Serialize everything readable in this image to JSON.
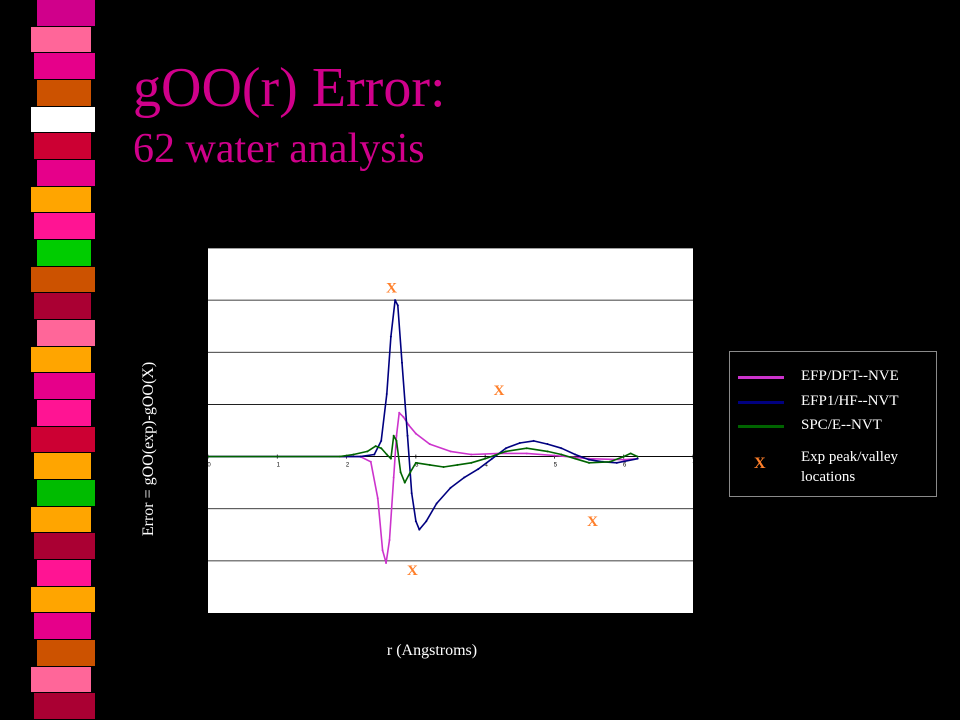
{
  "slide": {
    "title_line1": "gOO(r) Error:",
    "title_line2": "62 water analysis",
    "title_color": "#d0008b",
    "stripe_colors": [
      "#d0008b",
      "#ff6699",
      "#e6008a",
      "#cc5200",
      "#ffffff",
      "#cc0033",
      "#e6008a",
      "#ffa500",
      "#ff1493",
      "#00cc00",
      "#cc5200",
      "#aa0033",
      "#ff6699",
      "#ffa500",
      "#e6008a",
      "#ff1493",
      "#cc0033",
      "#ffa500",
      "#00bb00",
      "#ffa500",
      "#aa0033",
      "#ff1493",
      "#ffa500",
      "#e6008a",
      "#cc5200",
      "#ff6699",
      "#aa0033"
    ]
  },
  "chart_data": {
    "type": "line",
    "xlabel": "r (Angstroms)",
    "ylabel": "Error =   gOO(exp)-gOO(X)",
    "xlim": [
      0,
      7
    ],
    "ylim": [
      -1.5,
      2
    ],
    "xticks": [
      "0",
      "1",
      "2",
      "3",
      "4",
      "5",
      "6",
      "7"
    ],
    "yticks": [
      "-1.5",
      "-1",
      "-0.5",
      "0",
      "0.5",
      "1",
      "1.5",
      "2"
    ],
    "grid": "horizontal",
    "plot_background": "#ffffff",
    "series": [
      {
        "name": "EFP/DFT--NVE",
        "color": "#cc33cc",
        "points": [
          [
            0,
            0
          ],
          [
            2.0,
            0
          ],
          [
            2.2,
            0
          ],
          [
            2.35,
            -0.05
          ],
          [
            2.45,
            -0.4
          ],
          [
            2.52,
            -0.9
          ],
          [
            2.57,
            -1.02
          ],
          [
            2.62,
            -0.8
          ],
          [
            2.68,
            -0.2
          ],
          [
            2.72,
            0.2
          ],
          [
            2.76,
            0.42
          ],
          [
            2.82,
            0.38
          ],
          [
            2.9,
            0.3
          ],
          [
            3.0,
            0.22
          ],
          [
            3.2,
            0.12
          ],
          [
            3.5,
            0.05
          ],
          [
            3.8,
            0.02
          ],
          [
            4.2,
            0.03
          ],
          [
            4.6,
            0.03
          ],
          [
            5.0,
            0.01
          ],
          [
            5.5,
            -0.02
          ],
          [
            6.0,
            -0.03
          ],
          [
            6.2,
            -0.02
          ]
        ]
      },
      {
        "name": "EFP1/HF--NVT",
        "color": "#000080",
        "points": [
          [
            0,
            0
          ],
          [
            2.2,
            0
          ],
          [
            2.4,
            0.02
          ],
          [
            2.5,
            0.15
          ],
          [
            2.58,
            0.6
          ],
          [
            2.64,
            1.15
          ],
          [
            2.7,
            1.5
          ],
          [
            2.74,
            1.45
          ],
          [
            2.8,
            0.9
          ],
          [
            2.88,
            0.2
          ],
          [
            2.94,
            -0.35
          ],
          [
            3.0,
            -0.62
          ],
          [
            3.05,
            -0.7
          ],
          [
            3.15,
            -0.62
          ],
          [
            3.3,
            -0.45
          ],
          [
            3.5,
            -0.3
          ],
          [
            3.7,
            -0.2
          ],
          [
            3.9,
            -0.12
          ],
          [
            4.1,
            -0.02
          ],
          [
            4.3,
            0.08
          ],
          [
            4.5,
            0.13
          ],
          [
            4.7,
            0.15
          ],
          [
            4.9,
            0.12
          ],
          [
            5.1,
            0.08
          ],
          [
            5.3,
            0.02
          ],
          [
            5.5,
            -0.03
          ],
          [
            5.7,
            -0.05
          ],
          [
            5.9,
            -0.06
          ],
          [
            6.2,
            -0.02
          ]
        ]
      },
      {
        "name": "SPC/E--NVT",
        "color": "#006400",
        "points": [
          [
            0,
            0
          ],
          [
            1.9,
            0
          ],
          [
            2.1,
            0.02
          ],
          [
            2.3,
            0.05
          ],
          [
            2.42,
            0.1
          ],
          [
            2.5,
            0.08
          ],
          [
            2.58,
            0.02
          ],
          [
            2.64,
            -0.02
          ],
          [
            2.68,
            0.2
          ],
          [
            2.72,
            0.15
          ],
          [
            2.78,
            -0.15
          ],
          [
            2.84,
            -0.25
          ],
          [
            2.92,
            -0.15
          ],
          [
            3.0,
            -0.06
          ],
          [
            3.2,
            -0.08
          ],
          [
            3.4,
            -0.1
          ],
          [
            3.6,
            -0.08
          ],
          [
            3.8,
            -0.06
          ],
          [
            4.0,
            -0.02
          ],
          [
            4.3,
            0.05
          ],
          [
            4.6,
            0.08
          ],
          [
            4.9,
            0.05
          ],
          [
            5.1,
            0.02
          ],
          [
            5.3,
            -0.02
          ],
          [
            5.5,
            -0.06
          ],
          [
            5.8,
            -0.05
          ],
          [
            6.0,
            0.0
          ],
          [
            6.1,
            0.03
          ],
          [
            6.2,
            0.0
          ]
        ]
      }
    ],
    "exp_markers": {
      "name": "Exp peak/valley locations",
      "symbol": "X",
      "color": "#ff7f2a",
      "points": [
        [
          2.65,
          1.62
        ],
        [
          2.95,
          -1.09
        ],
        [
          4.2,
          0.64
        ],
        [
          5.55,
          -0.62
        ]
      ]
    }
  },
  "legend": {
    "entries": [
      {
        "label": "EFP/DFT--NVE",
        "color": "#cc33cc"
      },
      {
        "label": "EFP1/HF--NVT",
        "color": "#000080"
      },
      {
        "label": "SPC/E--NVT",
        "color": "#006400"
      }
    ],
    "marker_symbol": "X",
    "marker_label_line1": "Exp peak/valley",
    "marker_label_line2": "locations"
  }
}
